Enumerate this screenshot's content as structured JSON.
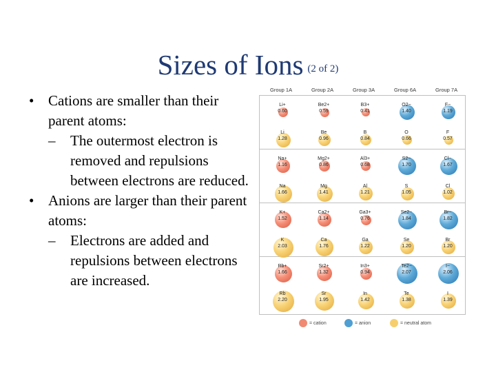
{
  "title": {
    "main": "Sizes of Ions",
    "sub": "(2 of 2)"
  },
  "bullets": [
    {
      "level": 1,
      "mark": "•",
      "text": "Cations are smaller than their parent atoms:"
    },
    {
      "level": 2,
      "mark": "–",
      "text": "The outermost electron is removed and repulsions between electrons are reduced."
    },
    {
      "level": 1,
      "mark": "•",
      "text": "Anions are larger than their parent atoms:"
    },
    {
      "level": 2,
      "mark": "–",
      "text": "Electrons are added and repulsions between electrons are increased."
    }
  ],
  "figure": {
    "group_headers": [
      "Group 1A",
      "Group 2A",
      "Group 3A",
      "Group 6A",
      "Group 7A"
    ],
    "colors": {
      "cation": "#f08a72",
      "anion": "#4f9fd3",
      "neutral": "#f6cf6c"
    },
    "rows": [
      [
        {
          "sym": "Li+",
          "r": "0.60",
          "t": "cation"
        },
        {
          "sym": "Be2+",
          "r": "0.59",
          "t": "cation"
        },
        {
          "sym": "B3+",
          "r": "0.41",
          "t": "cation"
        },
        {
          "sym": "O2−",
          "r": "1.40",
          "t": "anion"
        },
        {
          "sym": "F−",
          "r": "1.19",
          "t": "anion"
        }
      ],
      [
        {
          "sym": "Li",
          "r": "1.28",
          "t": "neutral"
        },
        {
          "sym": "Be",
          "r": "0.96",
          "t": "neutral"
        },
        {
          "sym": "B",
          "r": "0.84",
          "t": "neutral"
        },
        {
          "sym": "O",
          "r": "0.66",
          "t": "neutral"
        },
        {
          "sym": "F",
          "r": "0.57",
          "t": "neutral"
        }
      ],
      [
        {
          "sym": "Na+",
          "r": "1.16",
          "t": "cation"
        },
        {
          "sym": "Mg2+",
          "r": "0.86",
          "t": "cation"
        },
        {
          "sym": "Al3+",
          "r": "0.68",
          "t": "cation"
        },
        {
          "sym": "S2−",
          "r": "1.70",
          "t": "anion"
        },
        {
          "sym": "Cl−",
          "r": "1.67",
          "t": "anion"
        }
      ],
      [
        {
          "sym": "Na",
          "r": "1.66",
          "t": "neutral"
        },
        {
          "sym": "Mg",
          "r": "1.41",
          "t": "neutral"
        },
        {
          "sym": "Al",
          "r": "1.21",
          "t": "neutral"
        },
        {
          "sym": "S",
          "r": "1.05",
          "t": "neutral"
        },
        {
          "sym": "Cl",
          "r": "1.02",
          "t": "neutral"
        }
      ],
      [
        {
          "sym": "K+",
          "r": "1.52",
          "t": "cation"
        },
        {
          "sym": "Ca2+",
          "r": "1.14",
          "t": "cation"
        },
        {
          "sym": "Ga3+",
          "r": "0.76",
          "t": "cation"
        },
        {
          "sym": "Se2−",
          "r": "1.84",
          "t": "anion"
        },
        {
          "sym": "Br−",
          "r": "1.82",
          "t": "anion"
        }
      ],
      [
        {
          "sym": "K",
          "r": "2.03",
          "t": "neutral"
        },
        {
          "sym": "Ca",
          "r": "1.76",
          "t": "neutral"
        },
        {
          "sym": "Ga",
          "r": "1.22",
          "t": "neutral"
        },
        {
          "sym": "Se",
          "r": "1.20",
          "t": "neutral"
        },
        {
          "sym": "Br",
          "r": "1.20",
          "t": "neutral"
        }
      ],
      [
        {
          "sym": "Rb+",
          "r": "1.66",
          "t": "cation"
        },
        {
          "sym": "Sr2+",
          "r": "1.32",
          "t": "cation"
        },
        {
          "sym": "In3+",
          "r": "0.94",
          "t": "cation"
        },
        {
          "sym": "Te2−",
          "r": "2.07",
          "t": "anion"
        },
        {
          "sym": "I−",
          "r": "2.06",
          "t": "anion"
        }
      ],
      [
        {
          "sym": "Rb",
          "r": "2.20",
          "t": "neutral"
        },
        {
          "sym": "Sr",
          "r": "1.95",
          "t": "neutral"
        },
        {
          "sym": "In",
          "r": "1.42",
          "t": "neutral"
        },
        {
          "sym": "Te",
          "r": "1.38",
          "t": "neutral"
        },
        {
          "sym": "I",
          "r": "1.39",
          "t": "neutral"
        }
      ]
    ],
    "legend": [
      {
        "label": "= cation",
        "t": "cation"
      },
      {
        "label": "= anion",
        "t": "anion"
      },
      {
        "label": "= neutral atom",
        "t": "neutral"
      }
    ]
  }
}
